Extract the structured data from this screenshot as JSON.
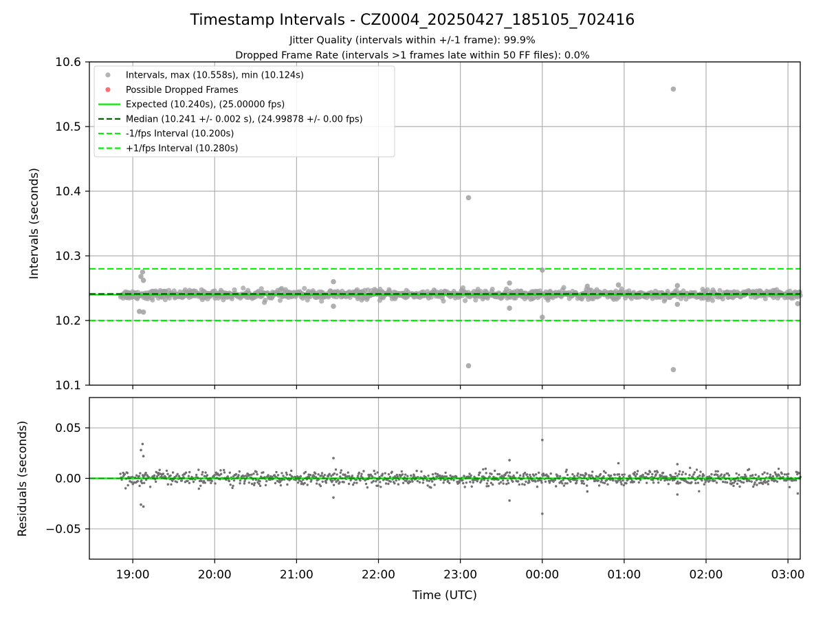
{
  "chart_data": [
    {
      "type": "scatter",
      "panel": "top",
      "title": "Timestamp Intervals - CZ0004_20250427_185105_702416",
      "subtitle_lines": [
        "Jitter Quality (intervals within +/-1 frame): 99.9%",
        "Dropped Frame Rate (intervals >1 frames late within 50 FF files): 0.0%"
      ],
      "xlabel": "",
      "ylabel": "Intervals (seconds)",
      "ylim": [
        10.1,
        10.6
      ],
      "yticks": [
        "10.1",
        "10.2",
        "10.3",
        "10.4",
        "10.5",
        "10.6"
      ],
      "ytick_values": [
        10.1,
        10.2,
        10.3,
        10.4,
        10.5,
        10.6
      ],
      "xlim_hours": [
        18.47,
        27.15
      ],
      "xticks": [
        "19:00",
        "20:00",
        "21:00",
        "22:00",
        "23:00",
        "00:00",
        "01:00",
        "02:00",
        "03:00"
      ],
      "xtick_hours": [
        19,
        20,
        21,
        22,
        23,
        24,
        25,
        26,
        27
      ],
      "data_start_hour": 18.85,
      "data_end_hour": 27.15,
      "grid": true,
      "legend": {
        "placement": "upper left",
        "entries": [
          {
            "label": "Intervals, max (10.558s), min (10.124s)",
            "marker": "dot",
            "color": "#a0a0a0"
          },
          {
            "label": "Possible Dropped Frames",
            "marker": "dot",
            "color": "#ff6666"
          },
          {
            "label": "Expected (10.240s), (25.00000 fps)",
            "marker": "solid",
            "color": "#00ee00"
          },
          {
            "label": "Median (10.241 +/- 0.002 s), (24.99878 +/- 0.00 fps)",
            "marker": "dashed",
            "color": "#006400"
          },
          {
            "label": "-1/fps Interval (10.200s)",
            "marker": "dashed",
            "color": "#00ee00"
          },
          {
            "label": "+1/fps Interval (10.280s)",
            "marker": "dashed",
            "color": "#00ee00"
          }
        ]
      },
      "reference_lines": {
        "expected": 10.24,
        "median": 10.241,
        "minus_fps": 10.2,
        "plus_fps": 10.28
      },
      "baseline_interval": 10.24,
      "outliers": [
        {
          "x_hour": 19.1,
          "y": 10.268
        },
        {
          "x_hour": 19.12,
          "y": 10.275
        },
        {
          "x_hour": 19.13,
          "y": 10.262
        },
        {
          "x_hour": 19.08,
          "y": 10.214
        },
        {
          "x_hour": 19.13,
          "y": 10.213
        },
        {
          "x_hour": 21.45,
          "y": 10.26
        },
        {
          "x_hour": 21.45,
          "y": 10.222
        },
        {
          "x_hour": 23.1,
          "y": 10.39
        },
        {
          "x_hour": 23.1,
          "y": 10.13
        },
        {
          "x_hour": 23.6,
          "y": 10.258
        },
        {
          "x_hour": 23.6,
          "y": 10.219
        },
        {
          "x_hour": 24.0,
          "y": 10.278
        },
        {
          "x_hour": 24.0,
          "y": 10.205
        },
        {
          "x_hour": 24.55,
          "y": 10.253
        },
        {
          "x_hour": 24.93,
          "y": 10.255
        },
        {
          "x_hour": 25.6,
          "y": 10.558
        },
        {
          "x_hour": 25.6,
          "y": 10.124
        },
        {
          "x_hour": 25.65,
          "y": 10.254
        },
        {
          "x_hour": 25.65,
          "y": 10.225
        },
        {
          "x_hour": 27.12,
          "y": 10.226
        }
      ],
      "colors": {
        "intervals": "#a0a0a0",
        "dropped": "#ff6666",
        "expected": "#00ee00",
        "median": "#006400"
      }
    },
    {
      "type": "scatter",
      "panel": "bottom",
      "xlabel": "Time (UTC)",
      "ylabel": "Residuals (seconds)",
      "ylim": [
        -0.08,
        0.08
      ],
      "yticks": [
        "0.05",
        "0.00",
        "−0.05"
      ],
      "ytick_values": [
        0.05,
        0.0,
        -0.05
      ],
      "xlim_hours": [
        18.47,
        27.15
      ],
      "xticks": [
        "19:00",
        "20:00",
        "21:00",
        "22:00",
        "23:00",
        "00:00",
        "01:00",
        "02:00",
        "03:00"
      ],
      "xtick_hours": [
        19,
        20,
        21,
        22,
        23,
        24,
        25,
        26,
        27
      ],
      "grid": true,
      "outliers": [
        {
          "x_hour": 19.12,
          "y": 0.034
        },
        {
          "x_hour": 19.1,
          "y": 0.028
        },
        {
          "x_hour": 19.13,
          "y": 0.022
        },
        {
          "x_hour": 19.1,
          "y": -0.026
        },
        {
          "x_hour": 19.13,
          "y": -0.028
        },
        {
          "x_hour": 21.45,
          "y": 0.02
        },
        {
          "x_hour": 21.45,
          "y": -0.019
        },
        {
          "x_hour": 23.6,
          "y": 0.018
        },
        {
          "x_hour": 23.6,
          "y": -0.022
        },
        {
          "x_hour": 24.0,
          "y": 0.038
        },
        {
          "x_hour": 24.0,
          "y": -0.035
        },
        {
          "x_hour": 24.55,
          "y": -0.013
        },
        {
          "x_hour": 24.93,
          "y": 0.015
        },
        {
          "x_hour": 25.65,
          "y": 0.014
        },
        {
          "x_hour": 25.65,
          "y": -0.016
        },
        {
          "x_hour": 27.12,
          "y": -0.015
        }
      ],
      "colors": {
        "points": "#707070",
        "zero_line": "#00ee00",
        "median": "#006400"
      }
    }
  ]
}
